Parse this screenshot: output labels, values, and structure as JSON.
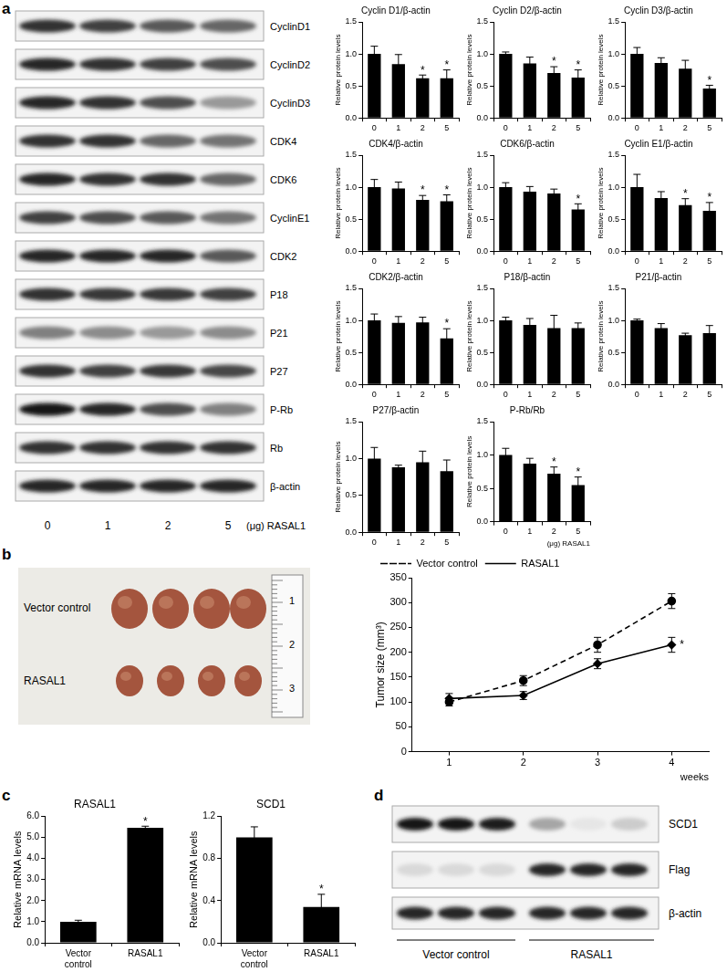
{
  "figure": {
    "panel_labels": [
      "a",
      "b",
      "c",
      "d"
    ],
    "blot_a": {
      "rows": [
        "CyclinD1",
        "CyclinD2",
        "CyclinD3",
        "CDK4",
        "CDK6",
        "CyclinE1",
        "CDK2",
        "P18",
        "P21",
        "P27",
        "P-Rb",
        "Rb",
        "β-actin"
      ],
      "lanes": [
        "0",
        "1",
        "2",
        "5"
      ],
      "lane_unit": "(μg) RASAL1"
    },
    "photo_b": {
      "groups": [
        "Vector control",
        "RASAL1"
      ],
      "ruler_labels": [
        "1",
        "2",
        "3"
      ]
    },
    "blot_d": {
      "rows": [
        "SCD1",
        "Flag",
        "β-actin"
      ],
      "groups": [
        "Vector control",
        "RASAL1"
      ]
    }
  },
  "chart_data": [
    {
      "type": "bar",
      "title": "Cyclin D1/β-actin",
      "ylabel": "Relative protein levels",
      "categories": [
        "0",
        "1",
        "2",
        "5"
      ],
      "values": [
        1.0,
        0.84,
        0.62,
        0.62
      ],
      "errors": [
        0.12,
        0.15,
        0.05,
        0.13
      ],
      "significance": [
        null,
        null,
        "*",
        "*"
      ],
      "color": "#000000",
      "ylim": [
        0,
        1.5
      ],
      "yticks": [
        {
          "value": 0,
          "label": "0.0"
        },
        {
          "value": 0.5,
          "label": "0.5"
        },
        {
          "value": 1,
          "label": "1.0"
        },
        {
          "value": 1.5,
          "label": "1.5"
        }
      ],
      "grid": false
    },
    {
      "type": "bar",
      "title": "Cyclin D2/β-actin",
      "ylabel": "Relative protein levels",
      "categories": [
        "0",
        "1",
        "2",
        "5"
      ],
      "values": [
        1.0,
        0.85,
        0.7,
        0.63
      ],
      "errors": [
        0.03,
        0.1,
        0.1,
        0.12
      ],
      "significance": [
        null,
        null,
        "*",
        "*"
      ],
      "color": "#000000",
      "ylim": [
        0,
        1.5
      ],
      "yticks": [
        {
          "value": 0,
          "label": "0.0"
        },
        {
          "value": 0.5,
          "label": "0.5"
        },
        {
          "value": 1,
          "label": "1.0"
        },
        {
          "value": 1.5,
          "label": "1.5"
        }
      ],
      "grid": false
    },
    {
      "type": "bar",
      "title": "Cyclin D3/β-actin",
      "ylabel": "Relative protein levels",
      "categories": [
        "0",
        "1",
        "2",
        "5"
      ],
      "values": [
        1.0,
        0.86,
        0.77,
        0.46
      ],
      "errors": [
        0.1,
        0.08,
        0.13,
        0.05
      ],
      "significance": [
        null,
        null,
        null,
        "*"
      ],
      "color": "#000000",
      "ylim": [
        0,
        1.5
      ],
      "yticks": [
        {
          "value": 0,
          "label": "0.0"
        },
        {
          "value": 0.5,
          "label": "0.5"
        },
        {
          "value": 1,
          "label": "1.0"
        },
        {
          "value": 1.5,
          "label": "1.5"
        }
      ],
      "grid": false
    },
    {
      "type": "bar",
      "title": "CDK4/β-actin",
      "ylabel": "Relative protein levels",
      "categories": [
        "0",
        "1",
        "2",
        "5"
      ],
      "values": [
        1.0,
        0.98,
        0.8,
        0.78
      ],
      "errors": [
        0.12,
        0.1,
        0.07,
        0.1
      ],
      "significance": [
        null,
        null,
        "*",
        "*"
      ],
      "color": "#000000",
      "ylim": [
        0,
        1.5
      ],
      "yticks": [
        {
          "value": 0,
          "label": "0.0"
        },
        {
          "value": 0.5,
          "label": "0.5"
        },
        {
          "value": 1,
          "label": "1.0"
        },
        {
          "value": 1.5,
          "label": "1.5"
        }
      ],
      "grid": false
    },
    {
      "type": "bar",
      "title": "CDK6/β-actin",
      "ylabel": "Relative protein levels",
      "categories": [
        "0",
        "1",
        "2",
        "5"
      ],
      "values": [
        1.0,
        0.93,
        0.9,
        0.65
      ],
      "errors": [
        0.07,
        0.08,
        0.07,
        0.09
      ],
      "significance": [
        null,
        null,
        null,
        "*"
      ],
      "color": "#000000",
      "ylim": [
        0,
        1.5
      ],
      "yticks": [
        {
          "value": 0,
          "label": "0.0"
        },
        {
          "value": 0.5,
          "label": "0.5"
        },
        {
          "value": 1,
          "label": "1.0"
        },
        {
          "value": 1.5,
          "label": "1.5"
        }
      ],
      "grid": false
    },
    {
      "type": "bar",
      "title": "Cyclin E1/β-actin",
      "ylabel": "Relative protein levels",
      "categories": [
        "0",
        "1",
        "2",
        "5"
      ],
      "values": [
        1.0,
        0.83,
        0.72,
        0.63
      ],
      "errors": [
        0.2,
        0.1,
        0.1,
        0.13
      ],
      "significance": [
        null,
        null,
        "*",
        "*"
      ],
      "color": "#000000",
      "ylim": [
        0,
        1.5
      ],
      "yticks": [
        {
          "value": 0,
          "label": "0.0"
        },
        {
          "value": 0.5,
          "label": "0.5"
        },
        {
          "value": 1,
          "label": "1.0"
        },
        {
          "value": 1.5,
          "label": "1.5"
        }
      ],
      "grid": false
    },
    {
      "type": "bar",
      "title": "CDK2/β-actin",
      "ylabel": "Relative protein levels",
      "categories": [
        "0",
        "1",
        "2",
        "5"
      ],
      "values": [
        1.0,
        0.96,
        0.97,
        0.72
      ],
      "errors": [
        0.1,
        0.1,
        0.08,
        0.15
      ],
      "significance": [
        null,
        null,
        null,
        "*"
      ],
      "color": "#000000",
      "ylim": [
        0,
        1.5
      ],
      "yticks": [
        {
          "value": 0,
          "label": "0.0"
        },
        {
          "value": 0.5,
          "label": "0.5"
        },
        {
          "value": 1,
          "label": "1.0"
        },
        {
          "value": 1.5,
          "label": "1.5"
        }
      ],
      "grid": false
    },
    {
      "type": "bar",
      "title": "P18/β-actin",
      "ylabel": "Relative protein levels",
      "categories": [
        "0",
        "1",
        "2",
        "5"
      ],
      "values": [
        1.0,
        0.93,
        0.88,
        0.88
      ],
      "errors": [
        0.05,
        0.1,
        0.2,
        0.08
      ],
      "significance": [
        null,
        null,
        null,
        null
      ],
      "color": "#000000",
      "ylim": [
        0,
        1.5
      ],
      "yticks": [
        {
          "value": 0,
          "label": "0.0"
        },
        {
          "value": 0.5,
          "label": "0.5"
        },
        {
          "value": 1,
          "label": "1.0"
        },
        {
          "value": 1.5,
          "label": "1.5"
        }
      ],
      "grid": false
    },
    {
      "type": "bar",
      "title": "P21/β-actin",
      "ylabel": "Relative protein levels",
      "categories": [
        "0",
        "1",
        "2",
        "5"
      ],
      "values": [
        1.0,
        0.88,
        0.77,
        0.8
      ],
      "errors": [
        0.02,
        0.07,
        0.03,
        0.12
      ],
      "significance": [
        null,
        null,
        null,
        null
      ],
      "color": "#000000",
      "ylim": [
        0,
        1.5
      ],
      "yticks": [
        {
          "value": 0,
          "label": "0.0"
        },
        {
          "value": 0.5,
          "label": "0.5"
        },
        {
          "value": 1,
          "label": "1.0"
        },
        {
          "value": 1.5,
          "label": "1.5"
        }
      ],
      "grid": false
    },
    {
      "type": "bar",
      "title": "P27/β-actin",
      "ylabel": "Relative protein levels",
      "categories": [
        "0",
        "1",
        "2",
        "5"
      ],
      "values": [
        1.0,
        0.88,
        0.95,
        0.83
      ],
      "errors": [
        0.15,
        0.03,
        0.15,
        0.15
      ],
      "significance": [
        null,
        null,
        null,
        null
      ],
      "color": "#000000",
      "ylim": [
        0,
        1.5
      ],
      "yticks": [
        {
          "value": 0,
          "label": "0.0"
        },
        {
          "value": 0.5,
          "label": "0.5"
        },
        {
          "value": 1,
          "label": "1.0"
        },
        {
          "value": 1.5,
          "label": "1.5"
        }
      ],
      "grid": false
    },
    {
      "type": "bar",
      "title": "P-Rb/Rb",
      "ylabel": "Relative protein levels",
      "xlabel": "(μg) RASAL1",
      "categories": [
        "0",
        "1",
        "2",
        "5"
      ],
      "values": [
        1.0,
        0.87,
        0.72,
        0.55
      ],
      "errors": [
        0.1,
        0.08,
        0.1,
        0.12
      ],
      "significance": [
        null,
        null,
        "*",
        "*"
      ],
      "color": "#000000",
      "ylim": [
        0,
        1.5
      ],
      "yticks": [
        {
          "value": 0,
          "label": "0.0"
        },
        {
          "value": 0.5,
          "label": "0.5"
        },
        {
          "value": 1,
          "label": "1.0"
        },
        {
          "value": 1.5,
          "label": "1.5"
        }
      ],
      "grid": false
    },
    {
      "type": "line",
      "ylabel": "Tumor size (mm³)",
      "xlabel": "weeks",
      "categories": [
        "1",
        "2",
        "3",
        "4"
      ],
      "ylim": [
        0,
        350
      ],
      "yticks": [
        0,
        50,
        100,
        150,
        200,
        250,
        300,
        350
      ],
      "grid": false,
      "legend": "upper left",
      "series": [
        {
          "name": "Vector control",
          "color": "#000000",
          "line_style": "dashed",
          "marker": "circle",
          "values": [
            100,
            143,
            215,
            303
          ],
          "errors": [
            8,
            10,
            15,
            15
          ]
        },
        {
          "name": "RASAL1",
          "color": "#000000",
          "line_style": "solid",
          "marker": "diamond",
          "values": [
            107,
            113,
            177,
            215
          ],
          "errors": [
            10,
            8,
            10,
            15
          ],
          "significance": [
            null,
            null,
            null,
            "*"
          ]
        }
      ]
    },
    {
      "type": "bar",
      "title": "RASAL1",
      "ylabel": "Relative mRNA levels",
      "categories": [
        "Vector control",
        "RASAL1"
      ],
      "values": [
        1.0,
        5.45
      ],
      "errors": [
        0.07,
        0.08
      ],
      "significance": [
        null,
        "*"
      ],
      "color": "#000000",
      "ylim": [
        0,
        6
      ],
      "yticks": [
        {
          "value": 0,
          "label": "0.0"
        },
        {
          "value": 1,
          "label": "1.0"
        },
        {
          "value": 2,
          "label": "2.0"
        },
        {
          "value": 3,
          "label": "3.0"
        },
        {
          "value": 4,
          "label": "4.0"
        },
        {
          "value": 5,
          "label": "5.0"
        },
        {
          "value": 6,
          "label": "6.0"
        }
      ],
      "grid": false
    },
    {
      "type": "bar",
      "title": "SCD1",
      "ylabel": "Relative mRNA levels",
      "categories": [
        "Vector control",
        "RASAL1"
      ],
      "values": [
        1.0,
        0.34
      ],
      "errors": [
        0.1,
        0.12
      ],
      "significance": [
        null,
        "*"
      ],
      "color": "#000000",
      "ylim": [
        0,
        1.2
      ],
      "yticks": [
        {
          "value": 0,
          "label": "0.0"
        },
        {
          "value": 0.4,
          "label": "0.4"
        },
        {
          "value": 0.8,
          "label": "0.8"
        },
        {
          "value": 1.2,
          "label": "1.2"
        }
      ],
      "grid": false
    }
  ]
}
